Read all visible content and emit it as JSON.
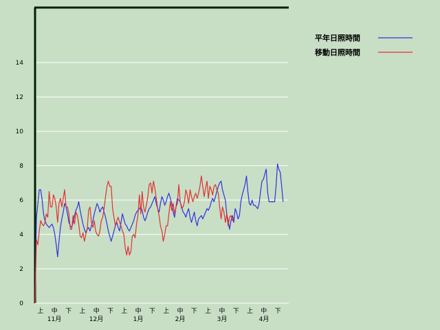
{
  "chart_data": {
    "type": "line",
    "ylim": [
      0,
      16
    ],
    "y_ticks": [
      0,
      2,
      4,
      6,
      8,
      10,
      12,
      14
    ],
    "grid": true,
    "legend_position": "top-right",
    "x_tick_labels": [
      "上",
      "中",
      "下",
      "上",
      "中",
      "下",
      "上",
      "中",
      "下",
      "上",
      "中",
      "下",
      "上",
      "中",
      "下",
      "上",
      "中",
      "下"
    ],
    "month_labels": [
      "11月",
      "12月",
      "1月",
      "2月",
      "3月",
      "4月"
    ],
    "colors": {
      "background": "#c8dfc6",
      "grid": "#ffffff",
      "axis": "#002000"
    },
    "series": [
      {
        "name": "平年日照時間",
        "color": "#3030e0",
        "values": [
          0,
          5.0,
          5.8,
          6.6,
          6.6,
          6.0,
          5.2,
          4.8,
          4.6,
          4.5,
          4.4,
          4.5,
          4.6,
          4.4,
          4.0,
          3.4,
          2.7,
          3.6,
          4.4,
          4.9,
          5.3,
          5.8,
          5.6,
          5.2,
          4.7,
          4.5,
          4.4,
          4.7,
          5.1,
          5.4,
          5.6,
          5.9,
          5.4,
          5.0,
          4.6,
          4.3,
          4.1,
          4.3,
          4.4,
          4.2,
          4.5,
          4.8,
          5.2,
          5.5,
          5.8,
          5.6,
          5.3,
          5.5,
          5.6,
          5.3,
          5.0,
          4.6,
          4.2,
          3.9,
          3.6,
          3.9,
          4.2,
          4.5,
          4.7,
          4.4,
          4.2,
          4.7,
          5.2,
          4.9,
          4.6,
          4.5,
          4.3,
          4.2,
          4.4,
          4.6,
          4.8,
          5.1,
          5.3,
          5.4,
          5.5,
          5.6,
          5.4,
          5.0,
          4.8,
          5.0,
          5.3,
          5.5,
          5.6,
          5.8,
          6.0,
          6.2,
          5.8,
          5.5,
          5.3,
          5.8,
          6.2,
          6.0,
          5.7,
          5.9,
          6.2,
          6.4,
          6.1,
          5.8,
          5.3,
          5.0,
          5.6,
          6.1,
          6.0,
          5.9,
          5.6,
          5.3,
          5.2,
          5.0,
          5.3,
          5.5,
          5.0,
          4.7,
          5.0,
          5.3,
          4.8,
          4.5,
          4.9,
          5.0,
          5.1,
          4.9,
          5.1,
          5.3,
          5.5,
          5.4,
          5.6,
          5.9,
          6.1,
          5.9,
          6.2,
          6.5,
          6.8,
          7.0,
          7.1,
          6.6,
          6.3,
          6.0,
          5.2,
          4.8,
          4.3,
          4.8,
          5.1,
          4.7,
          5.5,
          5.3,
          4.9,
          5.1,
          5.9,
          6.3,
          6.6,
          6.9,
          7.4,
          6.5,
          5.8,
          5.7,
          6.0,
          5.7,
          5.7,
          5.6,
          5.5,
          5.8,
          6.5,
          7.1,
          7.2,
          7.5,
          7.8,
          6.5,
          5.9,
          5.9,
          5.9,
          5.9,
          5.9,
          6.8,
          8.1,
          7.8,
          7.6,
          6.8,
          5.9
        ]
      },
      {
        "name": "移動日照時間",
        "color": "#e03030",
        "values": [
          0,
          3.7,
          3.4,
          4.2,
          4.8,
          4.6,
          4.5,
          4.7,
          5.2,
          5.0,
          6.5,
          5.6,
          5.6,
          6.3,
          6.1,
          5.6,
          4.7,
          5.8,
          6.1,
          5.6,
          6.1,
          6.6,
          5.6,
          5.6,
          5.2,
          4.3,
          4.3,
          5.1,
          4.6,
          5.3,
          5.1,
          4.6,
          3.9,
          3.8,
          4.1,
          3.6,
          4.0,
          4.3,
          5.4,
          5.6,
          4.7,
          4.4,
          4.8,
          4.2,
          4.0,
          3.9,
          4.2,
          4.8,
          5.0,
          5.5,
          6.2,
          6.8,
          7.1,
          6.8,
          6.8,
          5.5,
          5.0,
          4.5,
          4.8,
          5.0,
          4.7,
          4.5,
          4.2,
          4.0,
          3.2,
          2.8,
          3.3,
          2.8,
          3.0,
          3.9,
          4.0,
          3.8,
          4.6,
          5.1,
          6.3,
          5.2,
          6.5,
          5.6,
          5.3,
          5.7,
          6.2,
          6.9,
          7.0,
          6.4,
          7.1,
          6.7,
          6.1,
          5.5,
          5.1,
          4.5,
          4.2,
          3.6,
          4.0,
          4.5,
          4.5,
          5.2,
          5.9,
          5.4,
          5.8,
          5.2,
          5.6,
          5.8,
          6.9,
          5.9,
          5.5,
          5.6,
          5.9,
          6.6,
          6.3,
          5.8,
          6.6,
          6.2,
          5.9,
          6.2,
          6.4,
          6.1,
          6.4,
          6.8,
          7.4,
          6.8,
          6.2,
          6.7,
          7.1,
          6.1,
          6.8,
          6.6,
          6.3,
          6.8,
          6.9,
          6.6,
          6.4,
          5.6,
          4.9,
          5.6,
          5.3,
          4.7,
          5.2,
          4.5,
          5.0,
          5.1,
          4.8,
          5.0
        ]
      }
    ]
  }
}
